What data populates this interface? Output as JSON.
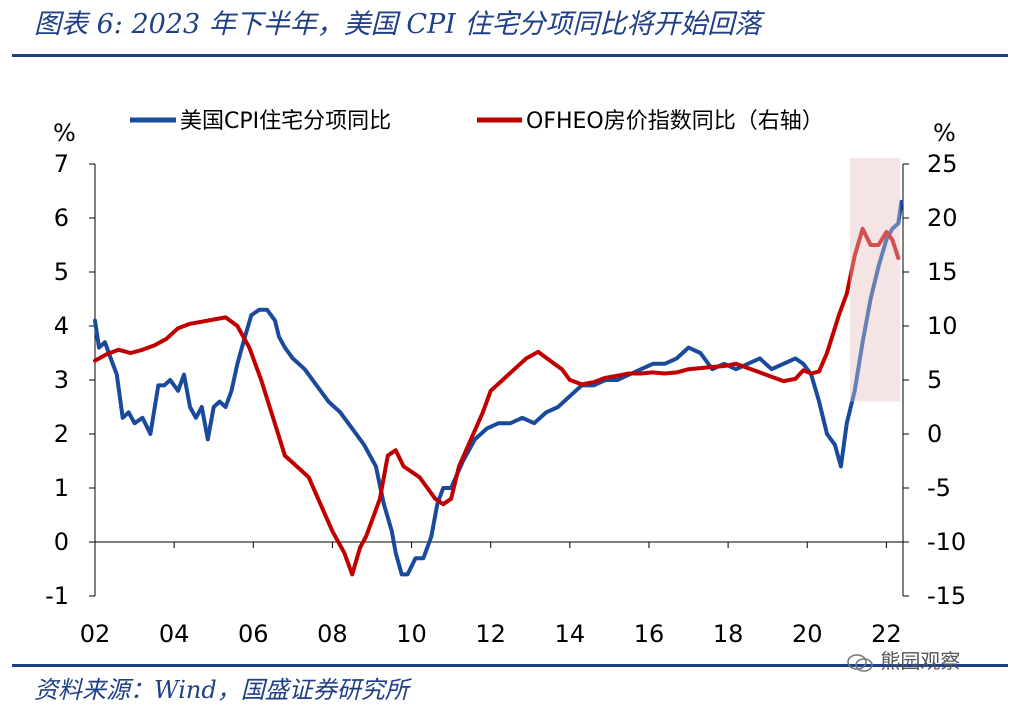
{
  "title": "图表 6: 2023 年下半年，美国 CPI 住宅分项同比将开始回落",
  "source": "资料来源：Wind，国盛证券研究所",
  "watermark": "熊园观察",
  "colors": {
    "cpi": "#1a4a9c",
    "ofheo": "#c00000",
    "highlight": "#f4e4e4",
    "brand": "#1f3f86"
  },
  "chart_data": {
    "type": "line",
    "title": "",
    "xlabel": "",
    "ylabel_left": "%",
    "ylabel_right": "%",
    "x_ticks": [
      "02",
      "04",
      "06",
      "08",
      "10",
      "12",
      "14",
      "16",
      "18",
      "20",
      "22"
    ],
    "x_range": [
      2002.0,
      2022.42
    ],
    "ylim_left": [
      -1,
      7
    ],
    "ylim_right": [
      -15,
      25
    ],
    "yticks_left": [
      "-1",
      "0",
      "1",
      "2",
      "3",
      "4",
      "5",
      "6",
      "7"
    ],
    "yticks_right": [
      "-15",
      "-10",
      "-5",
      "0",
      "5",
      "10",
      "15",
      "20",
      "25"
    ],
    "highlight": {
      "x_start": 2021.08,
      "x_end": 2022.35,
      "y_left_from": 2.6,
      "y_left_to": 7.0
    },
    "series": [
      {
        "name": "美国CPI住宅分项同比",
        "axis": "left",
        "x": [
          2002.0,
          2002.1,
          2002.25,
          2002.4,
          2002.55,
          2002.7,
          2002.85,
          2003.0,
          2003.2,
          2003.4,
          2003.6,
          2003.75,
          2003.9,
          2004.1,
          2004.25,
          2004.4,
          2004.55,
          2004.7,
          2004.85,
          2005.0,
          2005.15,
          2005.3,
          2005.45,
          2005.6,
          2005.75,
          2005.95,
          2006.15,
          2006.35,
          2006.55,
          2006.65,
          2006.8,
          2007.0,
          2007.3,
          2007.6,
          2007.9,
          2008.2,
          2008.5,
          2008.8,
          2009.1,
          2009.3,
          2009.5,
          2009.6,
          2009.75,
          2009.9,
          2010.1,
          2010.3,
          2010.5,
          2010.65,
          2010.8,
          2011.0,
          2011.3,
          2011.6,
          2011.9,
          2012.2,
          2012.5,
          2012.8,
          2013.1,
          2013.4,
          2013.7,
          2014.0,
          2014.3,
          2014.6,
          2014.9,
          2015.2,
          2015.5,
          2015.8,
          2016.1,
          2016.4,
          2016.7,
          2017.0,
          2017.3,
          2017.6,
          2017.9,
          2018.2,
          2018.5,
          2018.8,
          2019.1,
          2019.4,
          2019.7,
          2019.9,
          2020.1,
          2020.3,
          2020.5,
          2020.7,
          2020.85,
          2021.0,
          2021.2,
          2021.4,
          2021.6,
          2021.8,
          2022.0,
          2022.15,
          2022.3,
          2022.38
        ],
        "values": [
          4.1,
          3.6,
          3.7,
          3.4,
          3.1,
          2.3,
          2.4,
          2.2,
          2.3,
          2.0,
          2.9,
          2.9,
          3.0,
          2.8,
          3.1,
          2.5,
          2.3,
          2.5,
          1.9,
          2.5,
          2.6,
          2.5,
          2.8,
          3.3,
          3.7,
          4.2,
          4.3,
          4.3,
          4.1,
          3.8,
          3.6,
          3.4,
          3.2,
          2.9,
          2.6,
          2.4,
          2.1,
          1.8,
          1.4,
          0.7,
          0.2,
          -0.2,
          -0.6,
          -0.6,
          -0.3,
          -0.3,
          0.1,
          0.7,
          1.0,
          1.0,
          1.5,
          1.9,
          2.1,
          2.2,
          2.2,
          2.3,
          2.2,
          2.4,
          2.5,
          2.7,
          2.9,
          2.9,
          3.0,
          3.0,
          3.1,
          3.2,
          3.3,
          3.3,
          3.4,
          3.6,
          3.5,
          3.2,
          3.3,
          3.2,
          3.3,
          3.4,
          3.2,
          3.3,
          3.4,
          3.3,
          3.1,
          2.6,
          2.0,
          1.8,
          1.4,
          2.2,
          2.8,
          3.7,
          4.5,
          5.1,
          5.6,
          5.8,
          5.9,
          6.3
        ]
      },
      {
        "name": "OFHEO房价指数同比（右轴）",
        "axis": "right",
        "x": [
          2002.0,
          2002.3,
          2002.6,
          2002.9,
          2003.2,
          2003.5,
          2003.8,
          2004.1,
          2004.4,
          2004.7,
          2005.0,
          2005.3,
          2005.6,
          2005.9,
          2006.2,
          2006.5,
          2006.8,
          2007.1,
          2007.4,
          2007.7,
          2008.0,
          2008.3,
          2008.5,
          2008.7,
          2008.85,
          2009.0,
          2009.2,
          2009.4,
          2009.6,
          2009.8,
          2010.0,
          2010.2,
          2010.4,
          2010.6,
          2010.8,
          2011.0,
          2011.2,
          2011.5,
          2011.8,
          2012.0,
          2012.3,
          2012.6,
          2012.9,
          2013.2,
          2013.5,
          2013.8,
          2014.0,
          2014.3,
          2014.6,
          2014.9,
          2015.2,
          2015.5,
          2015.8,
          2016.1,
          2016.4,
          2016.7,
          2017.0,
          2017.3,
          2017.6,
          2017.9,
          2018.2,
          2018.5,
          2018.8,
          2019.1,
          2019.4,
          2019.7,
          2019.9,
          2020.1,
          2020.3,
          2020.5,
          2020.8,
          2021.0,
          2021.2,
          2021.4,
          2021.6,
          2021.8,
          2022.0,
          2022.15,
          2022.3
        ],
        "values": [
          6.8,
          7.4,
          7.8,
          7.5,
          7.8,
          8.2,
          8.8,
          9.8,
          10.2,
          10.4,
          10.6,
          10.8,
          10.0,
          8.0,
          5.0,
          1.5,
          -2.0,
          -3.0,
          -4.0,
          -6.5,
          -9.0,
          -11.0,
          -13.0,
          -10.5,
          -9.5,
          -8.0,
          -6.0,
          -2.0,
          -1.5,
          -3.0,
          -3.5,
          -4.0,
          -5.0,
          -6.0,
          -6.5,
          -6.0,
          -3.0,
          -0.5,
          2.0,
          4.0,
          5.0,
          6.0,
          7.0,
          7.6,
          6.8,
          6.0,
          5.0,
          4.6,
          4.8,
          5.2,
          5.4,
          5.6,
          5.6,
          5.7,
          5.6,
          5.7,
          6.0,
          6.1,
          6.2,
          6.3,
          6.5,
          6.1,
          5.7,
          5.3,
          4.9,
          5.1,
          5.9,
          5.6,
          5.8,
          7.5,
          11.0,
          13.0,
          16.5,
          19.0,
          17.5,
          17.5,
          18.7,
          18.0,
          16.3
        ]
      }
    ]
  }
}
